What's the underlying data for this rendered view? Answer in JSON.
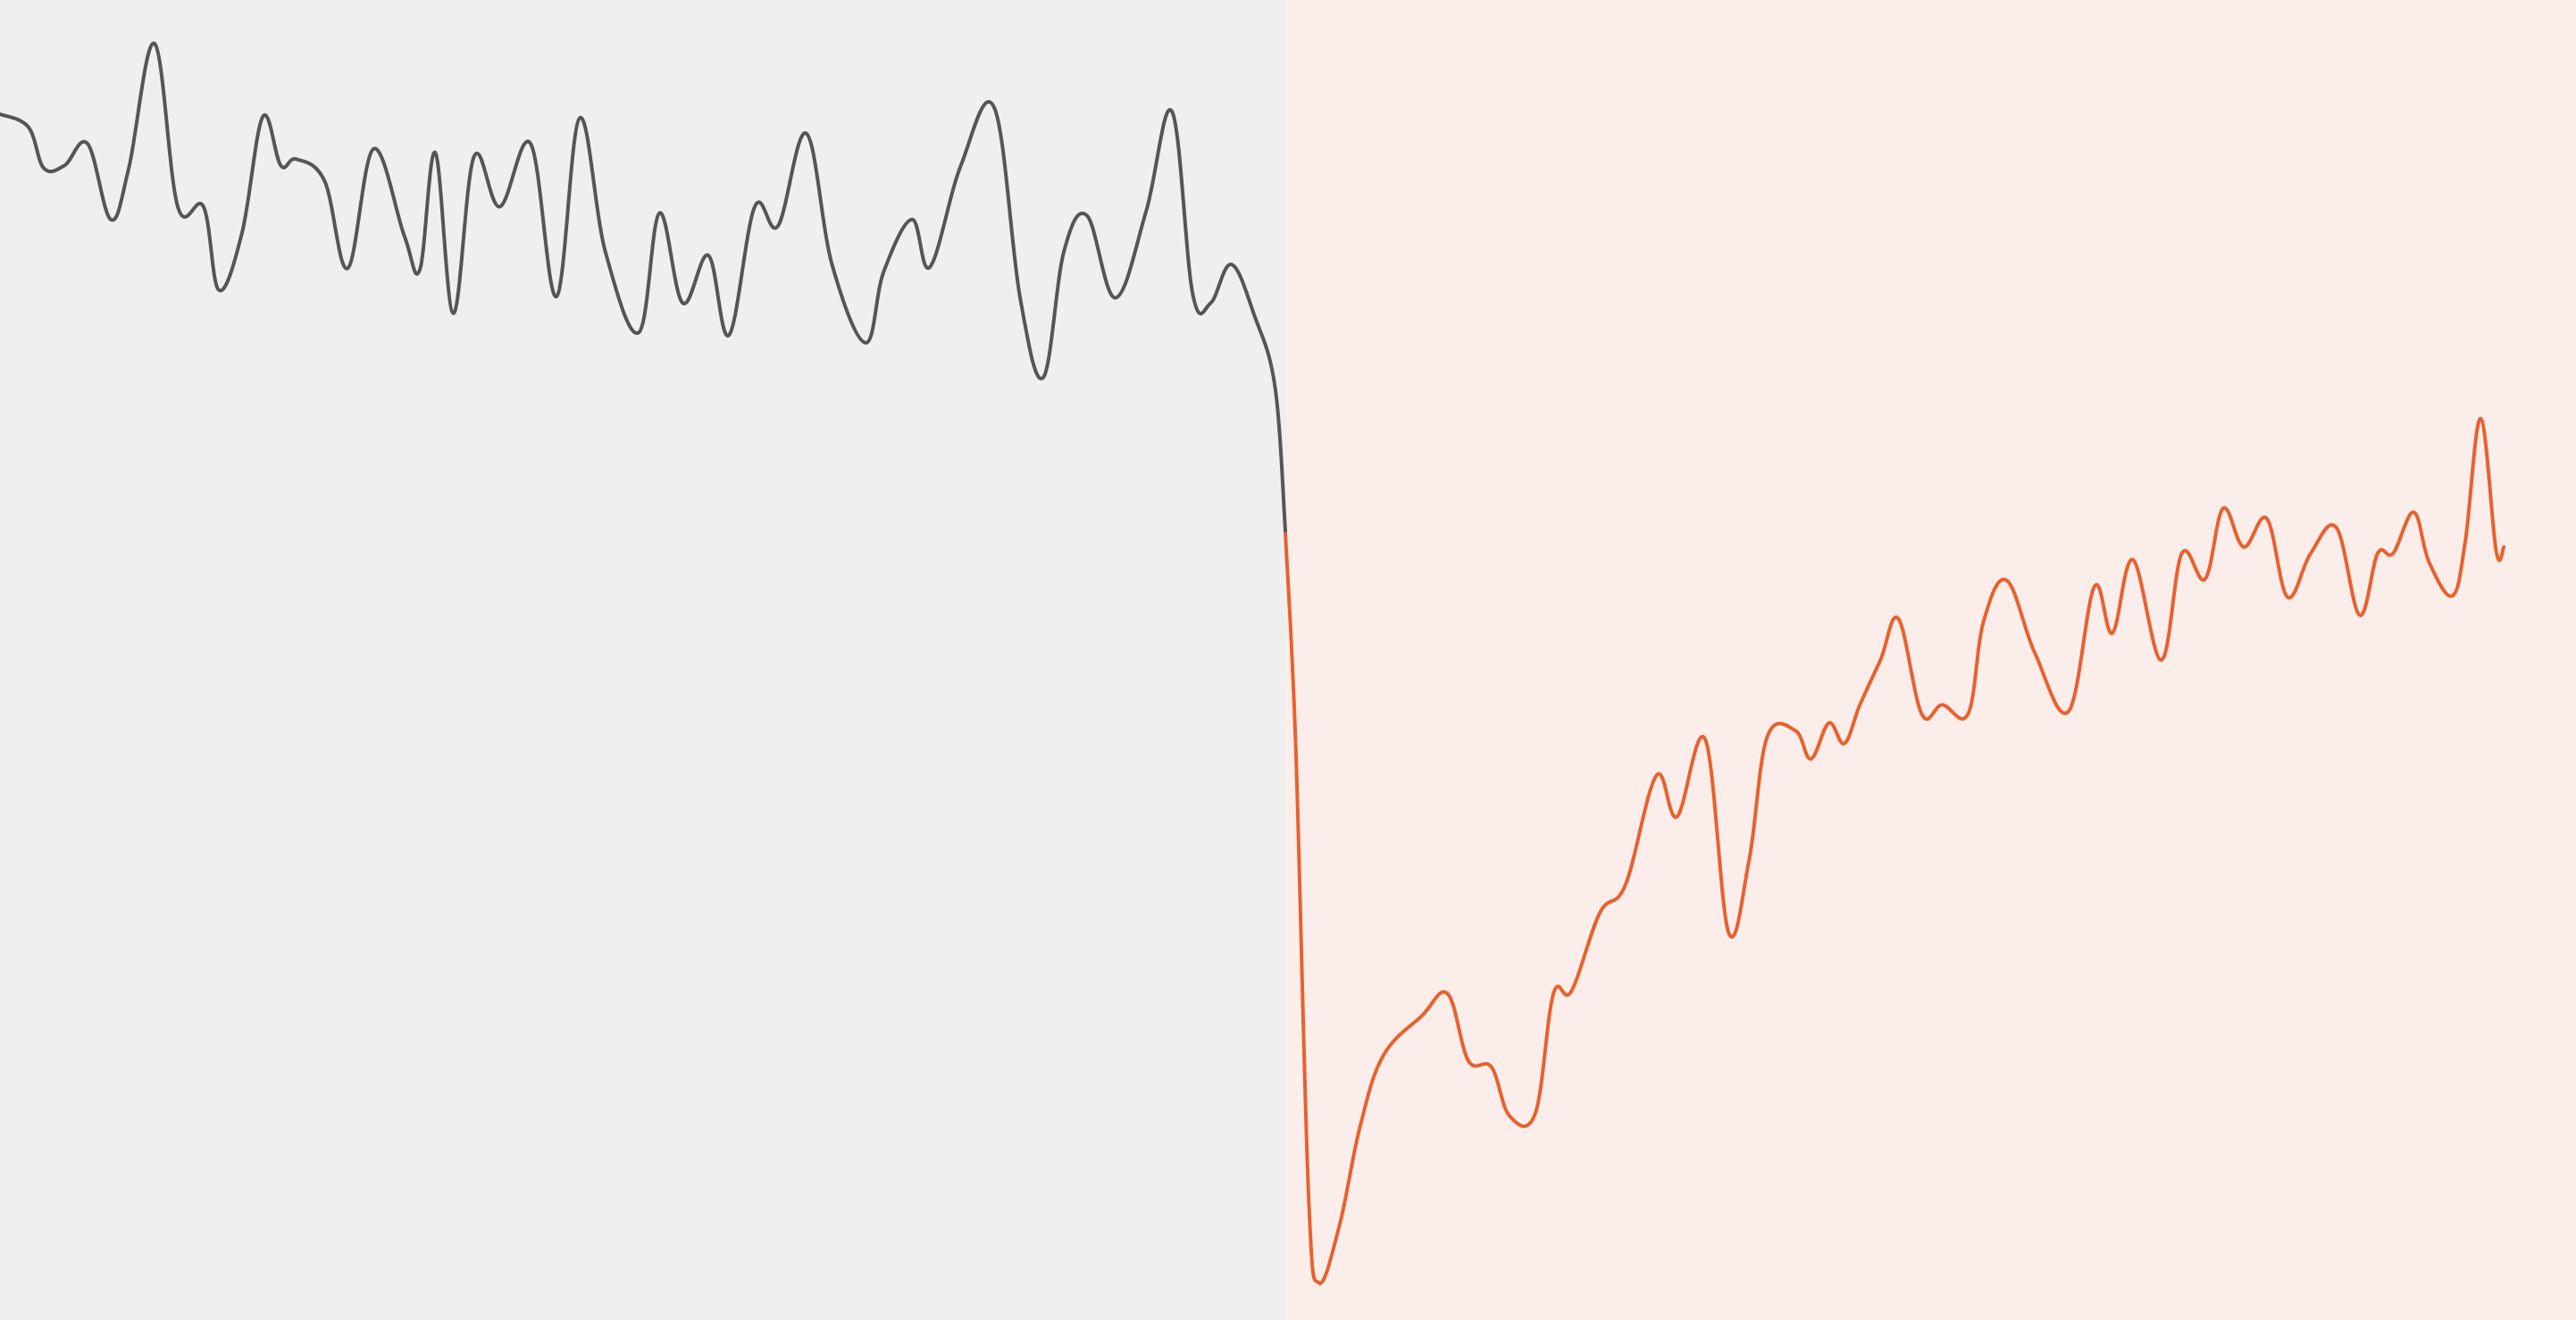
{
  "chart_data": {
    "type": "line",
    "title": "",
    "xlabel": "",
    "ylabel": "",
    "grid": false,
    "legend": "none",
    "xlim": [
      0,
      100
    ],
    "ylim": [
      0,
      100
    ],
    "background_color": "#efefef",
    "highlight_region": {
      "x_start": 49.9,
      "x_end": 100,
      "color": "#fbeeea"
    },
    "series": [
      {
        "role": "history",
        "color": "#555555",
        "x": [
          0,
          1.1,
          1.7,
          2.5,
          3.4,
          4.3,
          5.0,
          6.0,
          6.9,
          7.9,
          8.5,
          9.4,
          10.2,
          10.9,
          11.5,
          12.6,
          13.5,
          14.5,
          15.7,
          16.3,
          16.9,
          17.6,
          18.4,
          19.4,
          20.6,
          21.6,
          22.5,
          23.5,
          24.8,
          25.6,
          26.5,
          27.5,
          28.3,
          29.3,
          30.2,
          31.3,
          32.3,
          33.6,
          34.3,
          35.4,
          36.1,
          37.3,
          38.6,
          39.6,
          40.5,
          41.3,
          42.2,
          43.3,
          44.5,
          45.5,
          46.3,
          47.0,
          47.8,
          48.7,
          49.5,
          49.9
        ],
        "y": [
          92.5,
          91.5,
          88.3,
          88.5,
          90.2,
          84.3,
          88.3,
          98.0,
          85.3,
          85.3,
          78.8,
          83.3,
          92.3,
          88.5,
          89.0,
          87.3,
          80.5,
          89.8,
          83.0,
          80.4,
          89.5,
          77.0,
          89.2,
          85.3,
          90.2,
          78.3,
          92.2,
          81.8,
          75.5,
          84.8,
          77.8,
          81.5,
          75.3,
          85.3,
          83.8,
          91.0,
          80.8,
          74.7,
          80.2,
          84.3,
          80.6,
          88.5,
          93.0,
          78.2,
          72.0,
          81.8,
          84.6,
          78.2,
          85.0,
          92.7,
          78.5,
          77.8,
          80.8,
          76.8,
          71.2,
          60.0
        ]
      },
      {
        "role": "forecast",
        "color": "#e8612e",
        "x": [
          49.9,
          50.3,
          50.8,
          51.2,
          52.0,
          52.8,
          53.7,
          55.2,
          56.2,
          57.0,
          57.9,
          58.6,
          59.6,
          60.3,
          61.0,
          62.1,
          63.1,
          64.3,
          65.1,
          66.2,
          67.1,
          67.9,
          68.6,
          69.7,
          70.3,
          71.0,
          71.6,
          72.2,
          73.0,
          73.7,
          74.6,
          75.4,
          76.4,
          77.0,
          77.9,
          79.0,
          80.3,
          81.3,
          82.0,
          82.8,
          83.9,
          84.7,
          85.6,
          86.3,
          87.1,
          88.0,
          88.8,
          89.7,
          90.7,
          91.6,
          92.3,
          92.9,
          93.7,
          94.3,
          95.2,
          95.7,
          96.3,
          96.9,
          97.2
        ],
        "y": [
          59.8,
          43.2,
          8.2,
          1.5,
          6.0,
          13.7,
          19.2,
          22.3,
          24.0,
          18.8,
          18.3,
          14.5,
          14.7,
          24.0,
          24.2,
          30.3,
          32.5,
          41.0,
          37.8,
          43.8,
          28.8,
          34.4,
          44.0,
          44.5,
          42.3,
          45.1,
          43.5,
          46.5,
          50.0,
          53.2,
          45.8,
          46.5,
          45.8,
          53.0,
          56.2,
          50.5,
          46.0,
          55.7,
          52.1,
          57.8,
          50.0,
          58.3,
          56.3,
          61.8,
          58.8,
          61.0,
          54.9,
          58.3,
          60.3,
          53.5,
          58.3,
          58.3,
          61.5,
          57.6,
          55.0,
          59.2,
          68.8,
          58.5,
          58.8
        ]
      }
    ]
  }
}
